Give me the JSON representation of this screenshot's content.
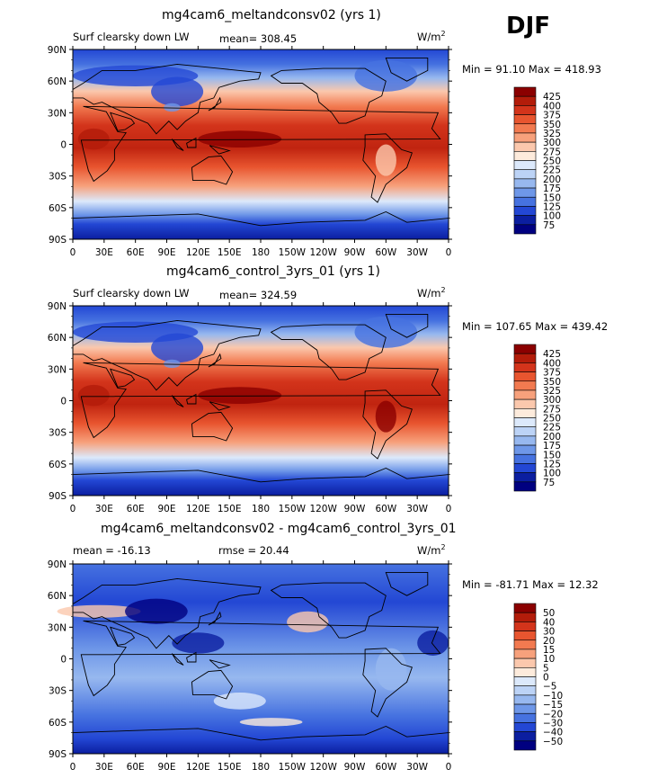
{
  "season": "DJF",
  "units_main": "W/m",
  "units_sup": "2",
  "lat_ticks": [
    "90N",
    "60N",
    "30N",
    "0",
    "30S",
    "60S",
    "90S"
  ],
  "lon_ticks": [
    "0",
    "30E",
    "60E",
    "90E",
    "120E",
    "150E",
    "180",
    "150W",
    "120W",
    "90W",
    "60W",
    "30W",
    "0"
  ],
  "panels": [
    {
      "title": "mg4cam6_meltandconsv02 (yrs 1)",
      "left_label": "Surf clearsky down LW",
      "stat_label": "mean= 308.45",
      "stat2_label": "",
      "minmax_label": "Min =  91.10 Max = 418.93",
      "colorbar_labels": [
        "425",
        "400",
        "375",
        "350",
        "325",
        "300",
        "275",
        "250",
        "225",
        "200",
        "175",
        "150",
        "125",
        "100",
        "75"
      ],
      "colorbar_colors": [
        "#8b0000",
        "#b31c0a",
        "#d3341b",
        "#e8552f",
        "#f27a50",
        "#f7a17c",
        "#fbc8ad",
        "#fdebdc",
        "#dce9fb",
        "#bcd3f6",
        "#97b8ef",
        "#6e97e8",
        "#4672e0",
        "#2347d4",
        "#0b1ea0",
        "#000080"
      ]
    },
    {
      "title": "mg4cam6_control_3yrs_01 (yrs 1)",
      "left_label": "Surf clearsky down LW",
      "stat_label": "mean= 324.59",
      "stat2_label": "",
      "minmax_label": "Min = 107.65 Max = 439.42",
      "colorbar_labels": [
        "425",
        "400",
        "375",
        "350",
        "325",
        "300",
        "275",
        "250",
        "225",
        "200",
        "175",
        "150",
        "125",
        "100",
        "75"
      ],
      "colorbar_colors": [
        "#8b0000",
        "#b31c0a",
        "#d3341b",
        "#e8552f",
        "#f27a50",
        "#f7a17c",
        "#fbc8ad",
        "#fdebdc",
        "#dce9fb",
        "#bcd3f6",
        "#97b8ef",
        "#6e97e8",
        "#4672e0",
        "#2347d4",
        "#0b1ea0",
        "#000080"
      ]
    },
    {
      "title": "mg4cam6_meltandconsv02 - mg4cam6_control_3yrs_01",
      "left_label": "mean = -16.13",
      "stat_label": "rmse =  20.44",
      "stat2_label": "",
      "minmax_label": "Min = -81.71 Max =  12.32",
      "colorbar_labels": [
        "50",
        "40",
        "30",
        "20",
        "15",
        "10",
        "5",
        "0",
        "−5",
        "−10",
        "−15",
        "−20",
        "−30",
        "−40",
        "−50"
      ],
      "colorbar_colors": [
        "#8b0000",
        "#b31c0a",
        "#d3341b",
        "#e8552f",
        "#f27a50",
        "#f7a17c",
        "#fbc8ad",
        "#fdebdc",
        "#dce9fb",
        "#bcd3f6",
        "#97b8ef",
        "#6e97e8",
        "#4672e0",
        "#2347d4",
        "#0b1ea0",
        "#000080"
      ]
    }
  ]
}
